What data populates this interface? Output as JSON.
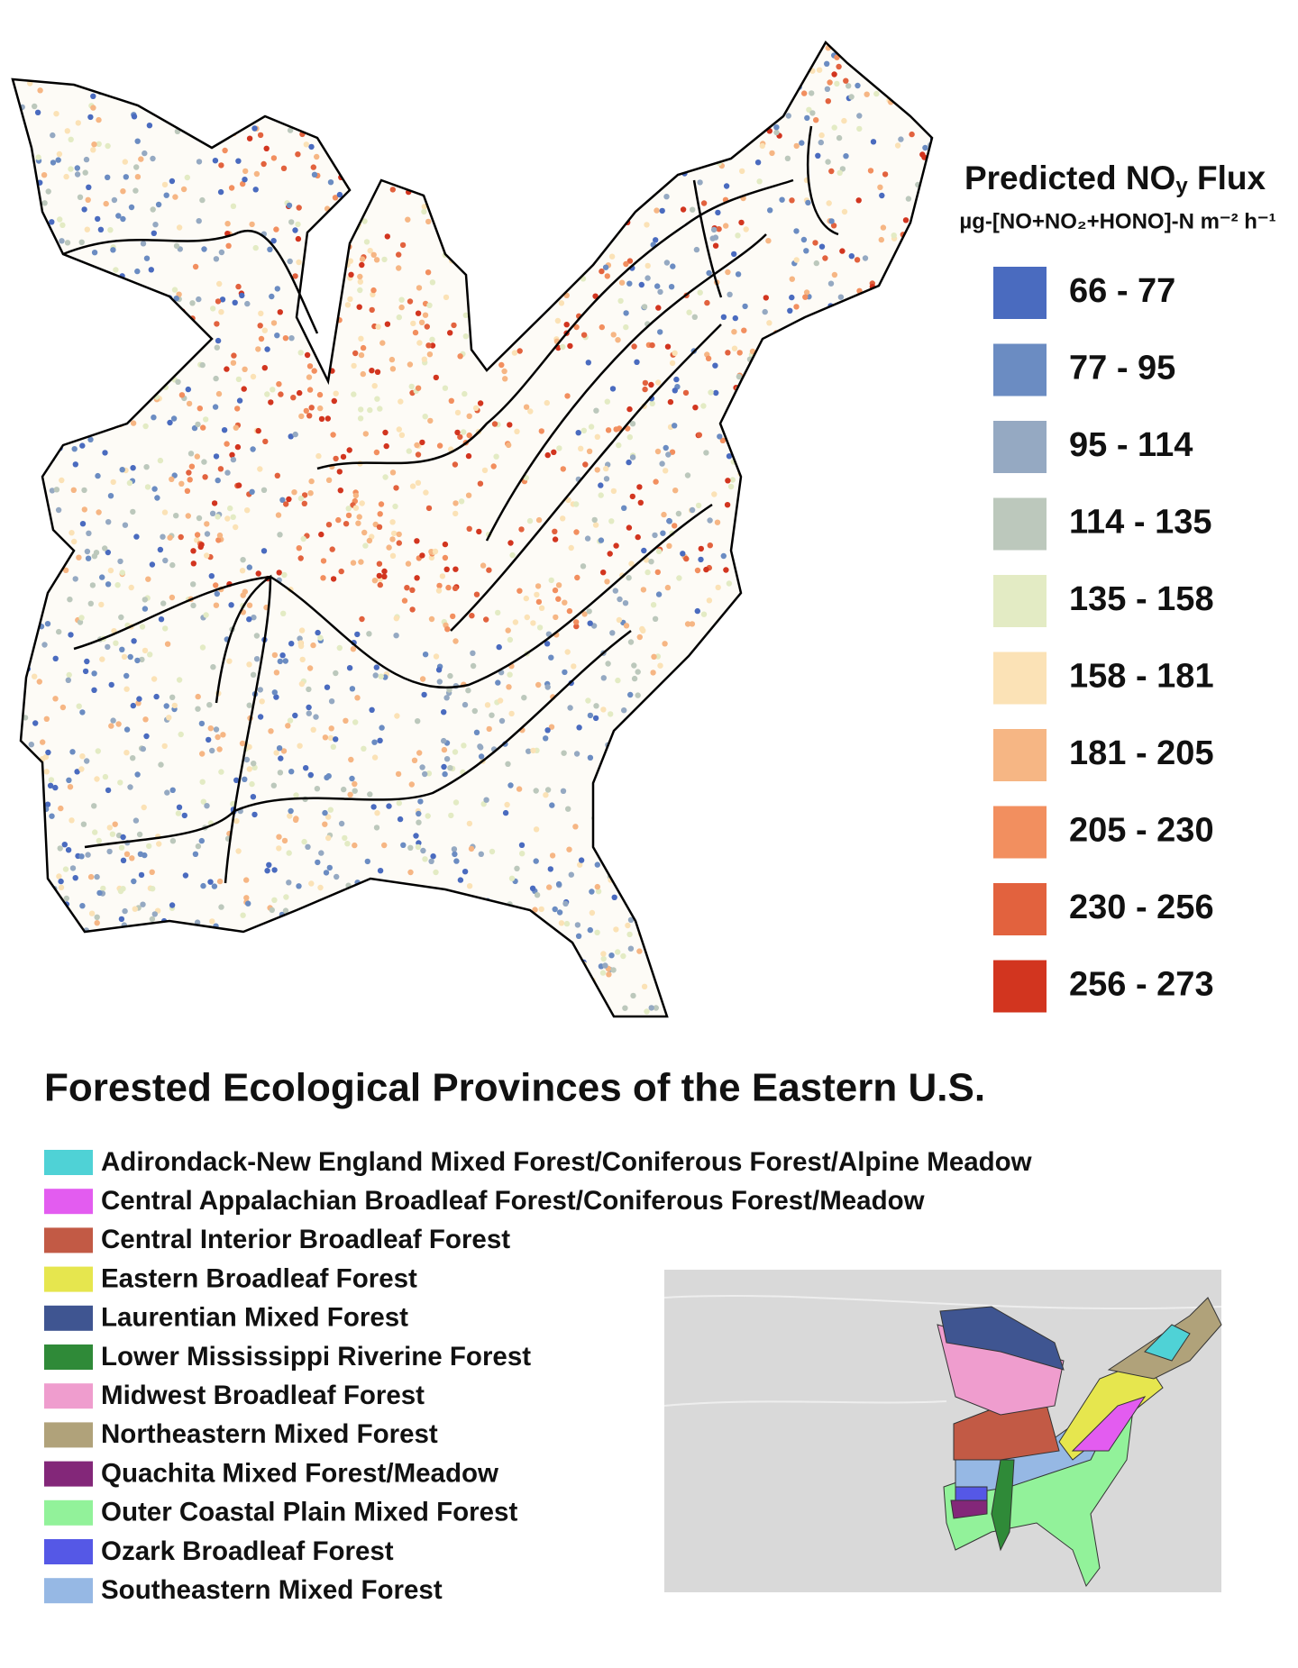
{
  "flux_legend": {
    "title": {
      "main": "Predicted NO",
      "subscript": "y",
      "rest": " Flux"
    },
    "unit": "µg-[NO+NO₂+HONO]-N m⁻² h⁻¹",
    "bins": [
      {
        "label": "66 - 77",
        "color": "#4a6bbf"
      },
      {
        "label": "77 - 95",
        "color": "#6b8cc2"
      },
      {
        "label": "95 - 114",
        "color": "#95a9c2"
      },
      {
        "label": "114 - 135",
        "color": "#bcc8bc"
      },
      {
        "label": "135 - 158",
        "color": "#e3ebc4"
      },
      {
        "label": "158 - 181",
        "color": "#fbe2b6"
      },
      {
        "label": "181 - 205",
        "color": "#f6b684"
      },
      {
        "label": "205 - 230",
        "color": "#f28f5f"
      },
      {
        "label": "230 - 256",
        "color": "#e2623e"
      },
      {
        "label": "256 - 273",
        "color": "#d2351f"
      }
    ]
  },
  "provinces": {
    "title": "Forested Ecological Provinces of the Eastern U.S.",
    "items": [
      {
        "name": "Adirondack-New England Mixed Forest/Coniferous Forest/Alpine Meadow",
        "color": "#4fd2d6"
      },
      {
        "name": "Central Appalachian Broadleaf Forest/Coniferous Forest/Meadow",
        "color": "#e35cf0"
      },
      {
        "name": "Central Interior Broadleaf Forest",
        "color": "#c25a45"
      },
      {
        "name": "Eastern Broadleaf Forest",
        "color": "#e6e64e"
      },
      {
        "name": "Laurentian Mixed Forest",
        "color": "#3f5591"
      },
      {
        "name": "Lower Mississippi Riverine Forest",
        "color": "#2f8a38"
      },
      {
        "name": "Midwest Broadleaf Forest",
        "color": "#ef9dce"
      },
      {
        "name": "Northeastern Mixed Forest",
        "color": "#b0a27a"
      },
      {
        "name": "Quachita Mixed Forest/Meadow",
        "color": "#832779"
      },
      {
        "name": "Outer Coastal Plain Mixed Forest",
        "color": "#92f29a"
      },
      {
        "name": "Ozark Broadleaf Forest",
        "color": "#5558e6"
      },
      {
        "name": "Southeastern Mixed Forest",
        "color": "#96b8e4"
      }
    ]
  }
}
